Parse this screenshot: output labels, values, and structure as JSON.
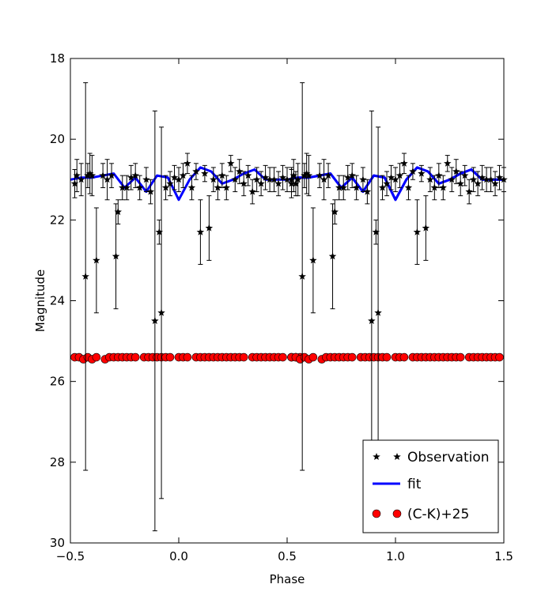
{
  "chart_data": {
    "type": "scatter",
    "title": "",
    "xlabel": "Phase",
    "ylabel": "Magnitude",
    "xlim": [
      -0.5,
      1.5
    ],
    "ylim": [
      18,
      30
    ],
    "y_inverted": true,
    "xticks": [
      -0.5,
      0.0,
      0.5,
      1.0,
      1.5
    ],
    "xtick_labels": [
      "−0.5",
      "0.0",
      "0.5",
      "1.0",
      "1.5"
    ],
    "yticks": [
      18,
      20,
      22,
      24,
      26,
      28,
      30
    ],
    "ytick_labels": [
      "18",
      "20",
      "22",
      "24",
      "26",
      "28",
      "30"
    ],
    "grid": false,
    "legend_position": "bottom-right",
    "legend": [
      "Observation",
      "fit",
      "(C-K)+25"
    ],
    "colors": {
      "observation": "#000000",
      "fit": "#0000ff",
      "color_index": "#ff0000"
    },
    "series": [
      {
        "name": "Observation",
        "marker": "star",
        "x": [
          -0.48,
          -0.47,
          -0.45,
          -0.43,
          -0.42,
          -0.41,
          -0.4,
          -0.38,
          -0.35,
          -0.33,
          -0.31,
          -0.29,
          -0.28,
          -0.26,
          -0.24,
          -0.22,
          -0.2,
          -0.18,
          -0.15,
          -0.13,
          -0.11,
          -0.09,
          -0.08,
          -0.06,
          -0.04,
          -0.02,
          0.0,
          0.02,
          0.04,
          0.06,
          0.08,
          0.1,
          0.12,
          0.14,
          0.16,
          0.18,
          0.2,
          0.22,
          0.24,
          0.26,
          0.28,
          0.3,
          0.32,
          0.34,
          0.36,
          0.38,
          0.4,
          0.42,
          0.44,
          0.46,
          0.48,
          0.5,
          0.52,
          0.54
        ],
        "y": [
          21.1,
          20.9,
          21.0,
          23.4,
          20.9,
          20.85,
          20.9,
          23.0,
          20.9,
          21.0,
          20.9,
          22.9,
          21.8,
          21.2,
          21.2,
          20.95,
          20.9,
          21.2,
          21.0,
          21.3,
          24.5,
          22.3,
          24.3,
          21.2,
          21.1,
          20.95,
          21.0,
          20.9,
          20.6,
          21.2,
          20.8,
          22.3,
          20.85,
          22.2,
          21.0,
          21.2,
          20.9,
          21.2,
          20.6,
          21.0,
          20.8,
          21.1,
          20.9,
          21.3,
          21.0,
          21.1,
          20.95,
          21.0,
          21.0,
          21.1,
          20.95,
          21.0,
          21.0,
          21.1
        ],
        "yerr": [
          0.35,
          0.4,
          0.4,
          4.8,
          0.3,
          0.5,
          0.5,
          1.3,
          0.3,
          0.5,
          0.3,
          1.3,
          0.3,
          0.3,
          0.3,
          0.3,
          0.3,
          0.3,
          0.3,
          0.3,
          5.2,
          0.3,
          4.6,
          0.3,
          0.3,
          0.3,
          0.3,
          0.3,
          0.25,
          0.3,
          0.2,
          0.8,
          0.2,
          0.8,
          0.3,
          0.3,
          0.3,
          0.3,
          0.2,
          0.3,
          0.3,
          0.3,
          0.25,
          0.3,
          0.3,
          0.3,
          0.3,
          0.3,
          0.3,
          0.3,
          0.3,
          0.3,
          0.3,
          0.3
        ]
      },
      {
        "name": "fit",
        "type": "line",
        "x": [
          -0.5,
          -0.45,
          -0.4,
          -0.35,
          -0.3,
          -0.25,
          -0.2,
          -0.15,
          -0.1,
          -0.05,
          0.0,
          0.05,
          0.1,
          0.15,
          0.2,
          0.25,
          0.3,
          0.35,
          0.4,
          0.45,
          0.5,
          0.55,
          0.6,
          0.65,
          0.7,
          0.75,
          0.8,
          0.85,
          0.9,
          0.95,
          1.0,
          1.05,
          1.1,
          1.15,
          1.2,
          1.25,
          1.3,
          1.35,
          1.4,
          1.45,
          1.5
        ],
        "y": [
          21.0,
          20.95,
          20.95,
          20.9,
          20.85,
          21.2,
          20.95,
          21.3,
          20.9,
          20.95,
          21.5,
          21.0,
          20.7,
          20.8,
          21.1,
          21.0,
          20.85,
          20.75,
          21.0,
          21.0,
          21.0,
          20.95,
          20.95,
          20.9,
          20.85,
          21.2,
          20.95,
          21.3,
          20.9,
          20.95,
          21.5,
          21.0,
          20.7,
          20.8,
          21.1,
          21.0,
          20.85,
          20.75,
          21.0,
          21.0,
          21.0
        ]
      },
      {
        "name": "(C-K)+25",
        "marker": "circle",
        "x": [
          -0.48,
          -0.46,
          -0.44,
          -0.42,
          -0.4,
          -0.38,
          -0.34,
          -0.32,
          -0.3,
          -0.28,
          -0.26,
          -0.24,
          -0.22,
          -0.2,
          -0.16,
          -0.14,
          -0.12,
          -0.1,
          -0.08,
          -0.06,
          -0.04,
          0.0,
          0.02,
          0.04,
          0.08,
          0.1,
          0.12,
          0.14,
          0.16,
          0.18,
          0.2,
          0.22,
          0.24,
          0.26,
          0.28,
          0.3,
          0.34,
          0.36,
          0.38,
          0.4,
          0.42,
          0.44,
          0.46,
          0.48,
          0.52,
          0.54,
          0.56
        ],
        "y": [
          25.4,
          25.4,
          25.45,
          25.4,
          25.45,
          25.4,
          25.45,
          25.4,
          25.4,
          25.4,
          25.4,
          25.4,
          25.4,
          25.4,
          25.4,
          25.4,
          25.4,
          25.4,
          25.4,
          25.4,
          25.4,
          25.4,
          25.4,
          25.4,
          25.4,
          25.4,
          25.4,
          25.4,
          25.4,
          25.4,
          25.4,
          25.4,
          25.4,
          25.4,
          25.4,
          25.4,
          25.4,
          25.4,
          25.4,
          25.4,
          25.4,
          25.4,
          25.4,
          25.4,
          25.4,
          25.4,
          25.4
        ]
      }
    ],
    "repeat_period": 1.0
  }
}
